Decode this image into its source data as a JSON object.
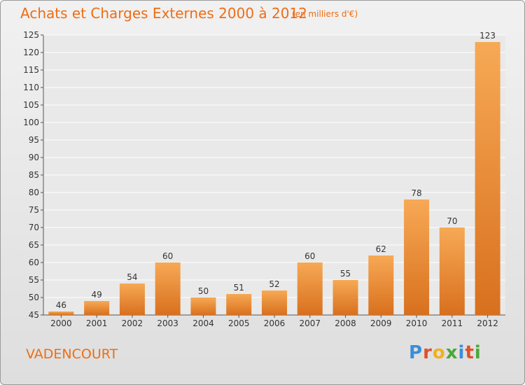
{
  "title": "Achats et Charges Externes 2000 à 2012",
  "subtitle": "(en milliers d'€)",
  "commune": "VADENCOURT",
  "logo_text": "Proxiti",
  "colors": {
    "title": "#ee6d15",
    "bar_light": "#f7a955",
    "bar_dark": "#d8701e",
    "logo": [
      "#3a8ed8",
      "#e0502a",
      "#f0b020",
      "#4aa838",
      "#3a8ed8",
      "#e0502a",
      "#4aa838"
    ]
  },
  "chart_data": {
    "type": "bar",
    "categories": [
      "2000",
      "2001",
      "2002",
      "2003",
      "2004",
      "2005",
      "2006",
      "2007",
      "2008",
      "2009",
      "2010",
      "2011",
      "2012"
    ],
    "values": [
      46,
      49,
      54,
      60,
      50,
      51,
      52,
      60,
      55,
      62,
      78,
      70,
      123
    ],
    "ylim": [
      45,
      125
    ],
    "yticks": [
      45,
      50,
      55,
      60,
      65,
      70,
      75,
      80,
      85,
      90,
      95,
      100,
      105,
      110,
      115,
      120,
      125
    ],
    "grid": true,
    "data_labels": true
  }
}
